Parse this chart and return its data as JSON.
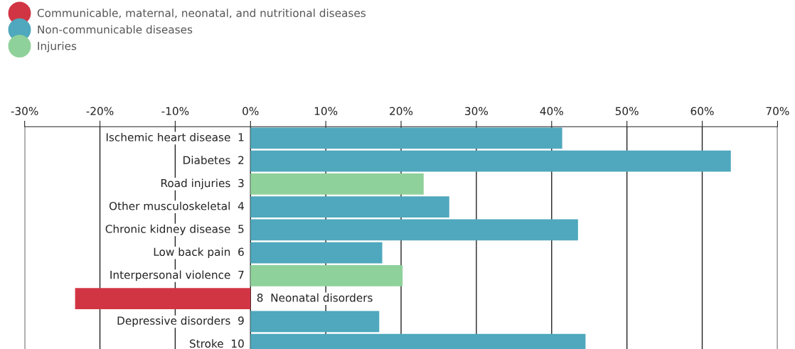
{
  "chart_data": {
    "type": "bar",
    "orientation": "horizontal",
    "stacked": true,
    "categories": [
      "Ischemic heart disease  1",
      "Diabetes  2",
      "Road injuries  3",
      "Other musculoskeletal  4",
      "Chronic kidney disease  5",
      "Low back pain  6",
      "Interpersonal violence  7",
      "8  Neonatal disorders",
      "Depressive disorders  9",
      "Stroke  10"
    ],
    "series": [
      {
        "name": "Communicable, maternal, neonatal, and nutritional diseases",
        "color": "#d13544",
        "values": [
          null,
          null,
          null,
          null,
          null,
          null,
          null,
          -23.3,
          null,
          null
        ]
      },
      {
        "name": "Non-communicable diseases",
        "color": "#4fa8bd",
        "values": [
          41.4,
          63.8,
          null,
          26.4,
          43.5,
          17.5,
          null,
          null,
          17.1,
          44.5
        ]
      },
      {
        "name": "Injuries",
        "color": "#8fd19a",
        "values": [
          null,
          null,
          23.0,
          null,
          null,
          null,
          20.2,
          null,
          null,
          null
        ]
      }
    ],
    "xlim": [
      -30,
      70
    ],
    "xticks": [
      {
        "value": -30,
        "label": "-30%"
      },
      {
        "value": -20,
        "label": "-20%"
      },
      {
        "value": -10,
        "label": "-10%"
      },
      {
        "value": 0,
        "label": "0%"
      },
      {
        "value": 10,
        "label": "10%"
      },
      {
        "value": 20,
        "label": "20%"
      },
      {
        "value": 30,
        "label": "30%"
      },
      {
        "value": 40,
        "label": "40%"
      },
      {
        "value": 50,
        "label": "50%"
      },
      {
        "value": 60,
        "label": "60%"
      },
      {
        "value": 70,
        "label": "70%"
      }
    ],
    "grid": "x",
    "legend": "top left"
  }
}
